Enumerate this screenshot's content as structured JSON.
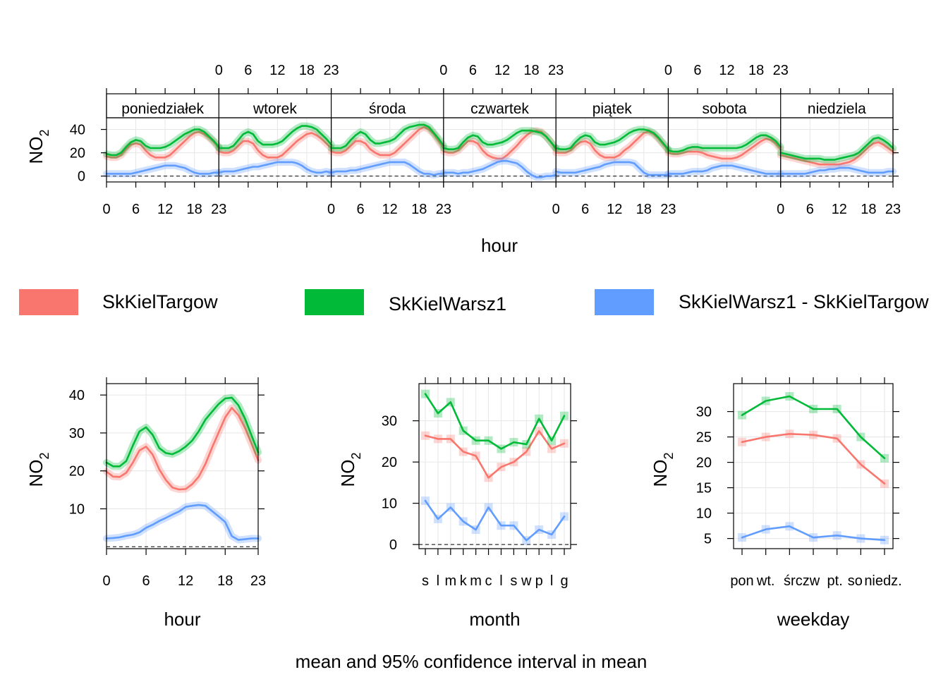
{
  "footer": "mean and 95% confidence interval in mean",
  "colors": {
    "SkKielTargow": "#F8766D",
    "SkKielWarsz1": "#00BA38",
    "difference": "#619CFF",
    "grid": "#E6E6E6",
    "strip": "#FFFFFF"
  },
  "legend": [
    {
      "label": "SkKielTargow",
      "color": "#F8766D"
    },
    {
      "label": "SkKielWarsz1",
      "color": "#00BA38"
    },
    {
      "label": "SkKielWarsz1 - SkKielTargow",
      "color": "#619CFF"
    }
  ],
  "chart_data": [
    {
      "type": "line",
      "panel": "hour-weekday",
      "xlabel": "hour",
      "ylabel": "NO",
      "ylabel_sub": "2",
      "panels": [
        "poniedziałek",
        "wtorek",
        "środa",
        "czwartek",
        "piątek",
        "sobota",
        "niedziela"
      ],
      "x_ticks": [
        0,
        6,
        12,
        18,
        23
      ],
      "y_ticks": [
        0,
        20,
        40
      ],
      "ylim": [
        -5,
        50
      ],
      "hours": [
        0,
        1,
        2,
        3,
        4,
        5,
        6,
        7,
        8,
        9,
        10,
        11,
        12,
        13,
        14,
        15,
        16,
        17,
        18,
        19,
        20,
        21,
        22,
        23
      ],
      "series": [
        {
          "name": "SkKielTargow",
          "values": [
            [
              17,
              16,
              16,
              18,
              23,
              27,
              28,
              27,
              22,
              18,
              16,
              16,
              16,
              18,
              22,
              26,
              30,
              34,
              37,
              38,
              36,
              33,
              29,
              24
            ],
            [
              21,
              20,
              20,
              22,
              26,
              30,
              30,
              28,
              22,
              18,
              16,
              16,
              16,
              18,
              22,
              26,
              30,
              33,
              36,
              37,
              35,
              32,
              28,
              24
            ],
            [
              21,
              20,
              20,
              22,
              26,
              30,
              30,
              28,
              23,
              20,
              18,
              18,
              18,
              20,
              24,
              28,
              32,
              36,
              40,
              42,
              40,
              36,
              30,
              24
            ],
            [
              21,
              20,
              20,
              22,
              26,
              30,
              30,
              28,
              22,
              18,
              16,
              15,
              15,
              18,
              22,
              26,
              31,
              35,
              38,
              39,
              38,
              34,
              29,
              23
            ],
            [
              20,
              20,
              20,
              22,
              26,
              29,
              30,
              28,
              22,
              18,
              16,
              16,
              16,
              18,
              22,
              25,
              29,
              33,
              37,
              38,
              36,
              32,
              27,
              22
            ],
            [
              20,
              19,
              19,
              20,
              21,
              21,
              21,
              20,
              18,
              17,
              16,
              15,
              15,
              15,
              16,
              18,
              21,
              24,
              27,
              30,
              32,
              31,
              28,
              23
            ],
            [
              18,
              17,
              16,
              15,
              14,
              13,
              12,
              11,
              10,
              10,
              10,
              10,
              10,
              11,
              12,
              14,
              17,
              21,
              25,
              28,
              29,
              27,
              24,
              21
            ]
          ]
        },
        {
          "name": "SkKielWarsz1",
          "values": [
            [
              19,
              18,
              18,
              20,
              25,
              29,
              31,
              30,
              26,
              24,
              24,
              24,
              25,
              27,
              30,
              33,
              36,
              38,
              40,
              40,
              38,
              34,
              30,
              25
            ],
            [
              24,
              24,
              24,
              26,
              31,
              36,
              38,
              36,
              30,
              27,
              27,
              27,
              28,
              30,
              34,
              38,
              41,
              43,
              43,
              42,
              40,
              36,
              32,
              27
            ],
            [
              24,
              24,
              24,
              26,
              31,
              35,
              38,
              36,
              31,
              28,
              28,
              29,
              30,
              32,
              36,
              40,
              42,
              43,
              44,
              44,
              42,
              37,
              32,
              26
            ],
            [
              24,
              23,
              23,
              24,
              29,
              33,
              35,
              34,
              29,
              27,
              27,
              28,
              29,
              31,
              34,
              37,
              39,
              39,
              39,
              38,
              37,
              34,
              29,
              24
            ],
            [
              24,
              23,
              23,
              24,
              29,
              33,
              35,
              34,
              29,
              27,
              27,
              28,
              29,
              31,
              34,
              37,
              39,
              40,
              40,
              39,
              37,
              33,
              28,
              23
            ],
            [
              22,
              21,
              21,
              22,
              24,
              25,
              25,
              24,
              24,
              24,
              24,
              24,
              24,
              24,
              24,
              25,
              27,
              30,
              33,
              35,
              35,
              33,
              30,
              25
            ],
            [
              20,
              19,
              18,
              17,
              16,
              15,
              15,
              15,
              15,
              14,
              14,
              14,
              15,
              16,
              17,
              18,
              20,
              24,
              28,
              32,
              33,
              31,
              28,
              24
            ]
          ]
        },
        {
          "name": "SkKielWarsz1 - SkKielTargow",
          "values": [
            [
              2,
              2,
              2,
              2,
              2,
              2,
              3,
              4,
              5,
              6,
              7,
              8,
              9,
              9,
              9,
              8,
              7,
              5,
              3,
              2,
              2,
              2,
              3,
              3
            ],
            [
              3,
              4,
              4,
              4,
              5,
              6,
              7,
              8,
              8,
              9,
              10,
              11,
              12,
              12,
              12,
              12,
              11,
              9,
              6,
              4,
              3,
              3,
              4,
              3
            ],
            [
              3,
              4,
              4,
              4,
              5,
              5,
              6,
              7,
              8,
              9,
              10,
              11,
              12,
              12,
              12,
              12,
              10,
              7,
              4,
              2,
              2,
              1,
              2,
              2
            ],
            [
              3,
              3,
              3,
              2,
              3,
              3,
              4,
              5,
              6,
              8,
              10,
              12,
              13,
              13,
              12,
              11,
              8,
              4,
              1,
              -1,
              -1,
              0,
              0,
              1
            ],
            [
              4,
              3,
              3,
              3,
              3,
              4,
              5,
              6,
              7,
              8,
              10,
              11,
              12,
              12,
              12,
              12,
              11,
              7,
              3,
              1,
              1,
              1,
              1,
              1
            ],
            [
              2,
              2,
              2,
              2,
              3,
              4,
              4,
              4,
              5,
              7,
              8,
              9,
              9,
              9,
              8,
              7,
              6,
              5,
              4,
              3,
              2,
              2,
              2,
              2
            ],
            [
              2,
              2,
              2,
              2,
              2,
              2,
              3,
              4,
              5,
              5,
              6,
              6,
              7,
              7,
              7,
              6,
              5,
              4,
              3,
              3,
              3,
              3,
              4,
              4
            ]
          ]
        }
      ]
    },
    {
      "type": "line",
      "panel": "hour",
      "xlabel": "hour",
      "ylabel": "NO",
      "ylabel_sub": "2",
      "x_ticks": [
        0,
        6,
        12,
        18,
        23
      ],
      "y_ticks": [
        10,
        20,
        30,
        40
      ],
      "xlim": [
        0,
        23
      ],
      "ylim": [
        -0.5,
        43
      ],
      "x": [
        0,
        1,
        2,
        3,
        4,
        5,
        6,
        7,
        8,
        9,
        10,
        11,
        12,
        13,
        14,
        15,
        16,
        17,
        18,
        19,
        20,
        21,
        22,
        23
      ],
      "series": [
        {
          "name": "SkKielTargow",
          "values": [
            19.8,
            18.5,
            18.4,
            19.5,
            22.2,
            25.4,
            26.4,
            24.3,
            20.4,
            17.6,
            15.6,
            15.1,
            15.2,
            16.5,
            18.5,
            21.8,
            26.1,
            30.1,
            34.1,
            36.6,
            34.7,
            31.3,
            27.1,
            22.8
          ]
        },
        {
          "name": "SkKielWarsz1",
          "values": [
            22.2,
            21.2,
            21.2,
            22.6,
            26.7,
            30.4,
            31.5,
            29.5,
            26.0,
            24.7,
            24.4,
            25.2,
            26.4,
            28.0,
            30.5,
            33.5,
            35.6,
            37.6,
            39.1,
            39.3,
            37.3,
            33.8,
            29.3,
            24.9
          ]
        },
        {
          "name": "SkKielWarsz1 - SkKielTargow",
          "values": [
            2.2,
            2.3,
            2.5,
            2.9,
            3.2,
            3.8,
            5.0,
            5.8,
            6.8,
            7.6,
            8.5,
            9.3,
            10.5,
            10.8,
            11.0,
            10.8,
            9.4,
            8.0,
            6.5,
            2.8,
            1.8,
            2.0,
            2.2,
            2.2
          ]
        }
      ]
    },
    {
      "type": "line",
      "panel": "month",
      "xlabel": "month",
      "ylabel": "NO",
      "ylabel_sub": "2",
      "categories": [
        "s",
        "l",
        "m",
        "k",
        "m",
        "c",
        "l",
        "s",
        "w",
        "p",
        "l",
        "g"
      ],
      "y_ticks": [
        0,
        10,
        20,
        30
      ],
      "ylim": [
        -1,
        39
      ],
      "series": [
        {
          "name": "SkKielTargow",
          "values": [
            26.4,
            25.6,
            25.6,
            22.5,
            21.5,
            16.2,
            18.8,
            20.0,
            22.5,
            27.5,
            23.2,
            24.5
          ]
        },
        {
          "name": "SkKielWarsz1",
          "values": [
            36.5,
            31.8,
            34.5,
            27.6,
            25.2,
            25.2,
            23.2,
            24.8,
            24.3,
            30.5,
            25.2,
            31.2
          ]
        },
        {
          "name": "SkKielWarsz1 - SkKielTargow",
          "values": [
            10.6,
            6.2,
            9.0,
            5.6,
            3.6,
            9.0,
            4.6,
            4.6,
            1.0,
            3.6,
            2.4,
            6.8
          ]
        }
      ]
    },
    {
      "type": "line",
      "panel": "weekday",
      "xlabel": "weekday",
      "ylabel": "NO",
      "ylabel_sub": "2",
      "categories": [
        "pon.",
        "wt.",
        "śr.",
        "czw.",
        "pt.",
        "sob.",
        "niedz."
      ],
      "category_labels": [
        "pon",
        "wt.",
        "śr",
        "czw",
        "pt.",
        "so",
        "niedz."
      ],
      "y_ticks": [
        5,
        10,
        15,
        20,
        25,
        30
      ],
      "ylim": [
        3,
        35.5
      ],
      "series": [
        {
          "name": "SkKielTargow",
          "values": [
            24.0,
            25.0,
            25.6,
            25.4,
            24.7,
            19.6,
            15.8
          ]
        },
        {
          "name": "SkKielWarsz1",
          "values": [
            29.3,
            32.1,
            33.0,
            30.5,
            30.5,
            25.0,
            20.8
          ]
        },
        {
          "name": "SkKielWarsz1 - SkKielTargow",
          "values": [
            5.2,
            6.8,
            7.4,
            5.2,
            5.6,
            5.0,
            4.7
          ]
        }
      ]
    }
  ]
}
